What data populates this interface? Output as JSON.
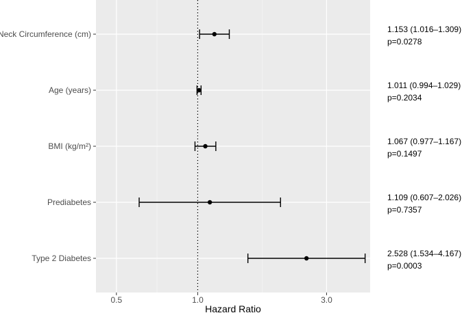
{
  "chart_data": {
    "type": "forest",
    "xlabel": "Hazard Ratio",
    "x_scale": "log",
    "xlim": [
      0.42,
      4.35
    ],
    "x_ticks": [
      {
        "value": 0.5,
        "label": "0.5"
      },
      {
        "value": 1.0,
        "label": "1.0"
      },
      {
        "value": 3.0,
        "label": "3.0"
      }
    ],
    "reference_line": 1.0,
    "grid": true,
    "rows": [
      {
        "label": "Neck Circumference (cm)",
        "hr": 1.153,
        "lo": 1.016,
        "hi": 1.309,
        "ci_text": "1.153 (1.016–1.309)",
        "p_text": "p=0.0278"
      },
      {
        "label": "Age (years)",
        "hr": 1.011,
        "lo": 0.994,
        "hi": 1.029,
        "ci_text": "1.011 (0.994–1.029)",
        "p_text": "p=0.2034"
      },
      {
        "label": "BMI (kg/m²)",
        "hr": 1.067,
        "lo": 0.977,
        "hi": 1.167,
        "ci_text": "1.067 (0.977–1.167)",
        "p_text": "p=0.1497"
      },
      {
        "label": "Prediabetes",
        "hr": 1.109,
        "lo": 0.607,
        "hi": 2.026,
        "ci_text": "1.109 (0.607–2.026)",
        "p_text": "p=0.7357"
      },
      {
        "label": "Type 2 Diabetes",
        "hr": 2.528,
        "lo": 1.534,
        "hi": 4.167,
        "ci_text": "2.528 (1.534–4.167)",
        "p_text": "p=0.0003"
      }
    ],
    "colors": {
      "panel": "#ebebeb",
      "grid_major": "#ffffff",
      "grid_minor": "#f5f5f5",
      "point": "#000000",
      "reference": "#000000"
    }
  }
}
